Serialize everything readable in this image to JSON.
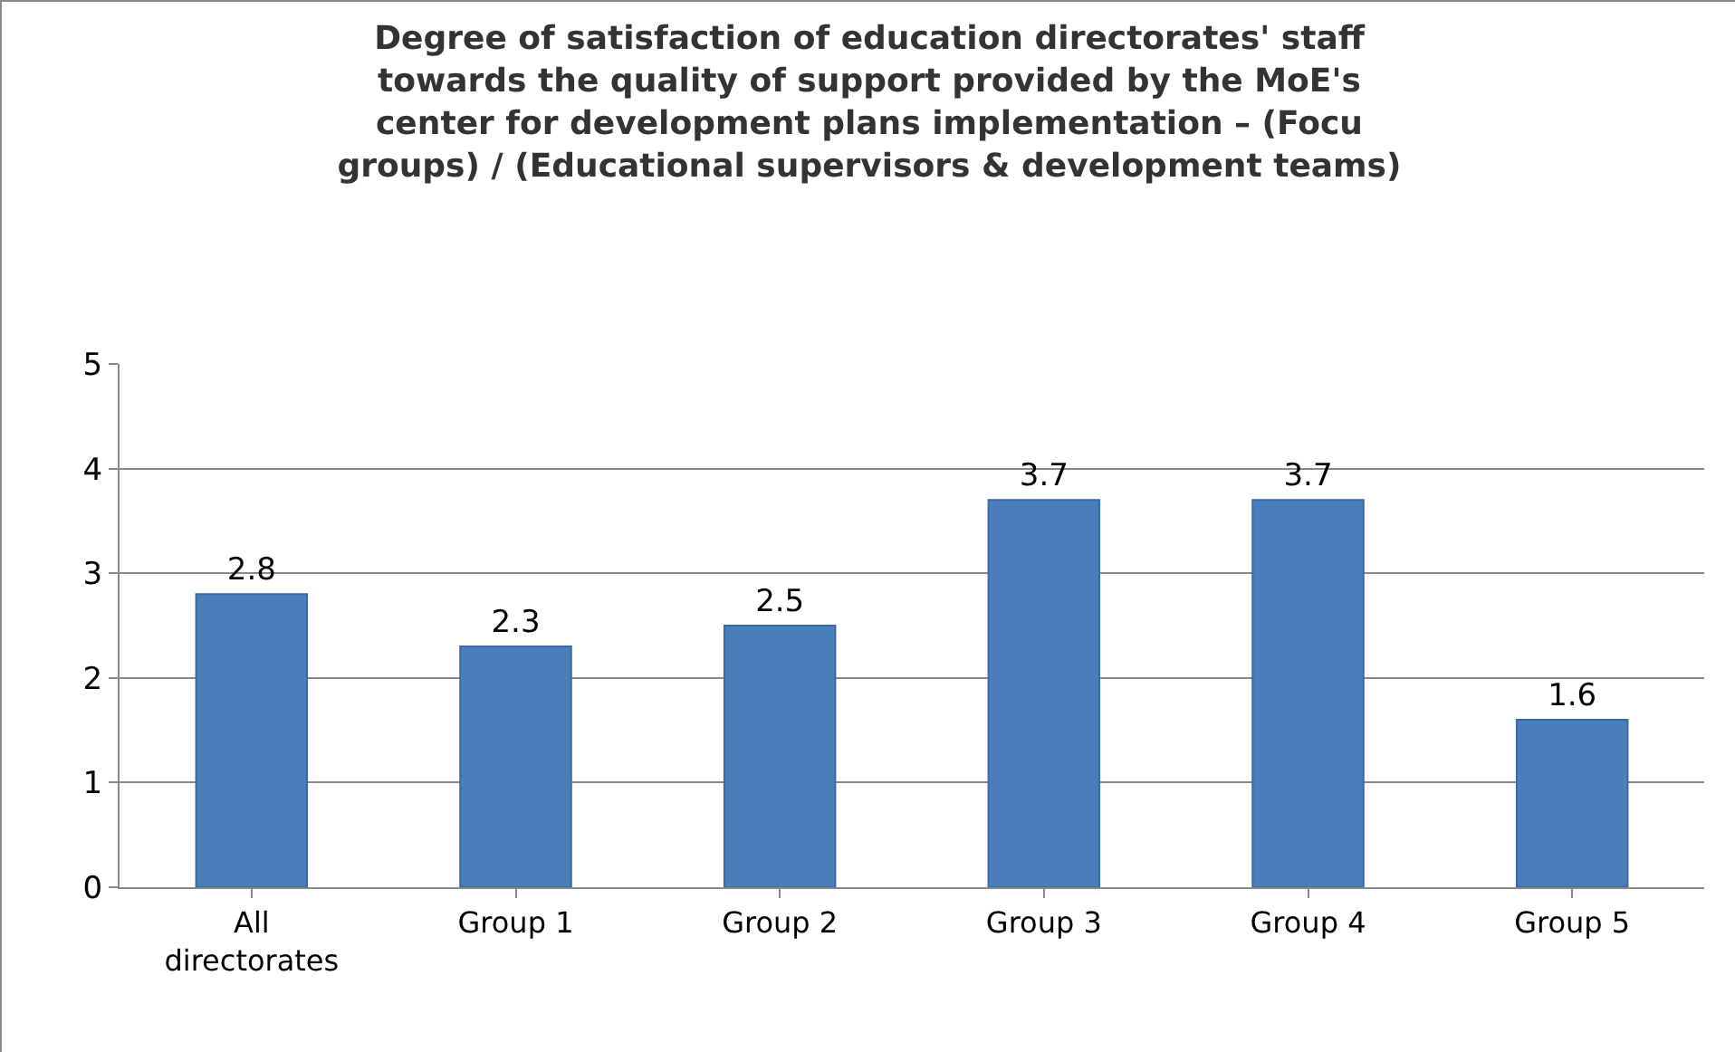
{
  "chart_data": {
    "type": "bar",
    "title": "Degree of satisfaction of education directorates' staff towards the quality of support provided by the MoE's center for development plans implementation – (Focu groups) / (Educational supervisors & development teams)",
    "categories": [
      "All directorates",
      "Group 1",
      "Group 2",
      "Group 3",
      "Group 4",
      "Group 5"
    ],
    "values": [
      2.8,
      2.3,
      2.5,
      3.7,
      3.7,
      1.6
    ],
    "color": "#4a7ebb",
    "ylim": [
      0,
      5
    ],
    "yticks": [
      0,
      1,
      2,
      3,
      4,
      5
    ],
    "grid": "y",
    "legend": false,
    "data_labels": true
  }
}
